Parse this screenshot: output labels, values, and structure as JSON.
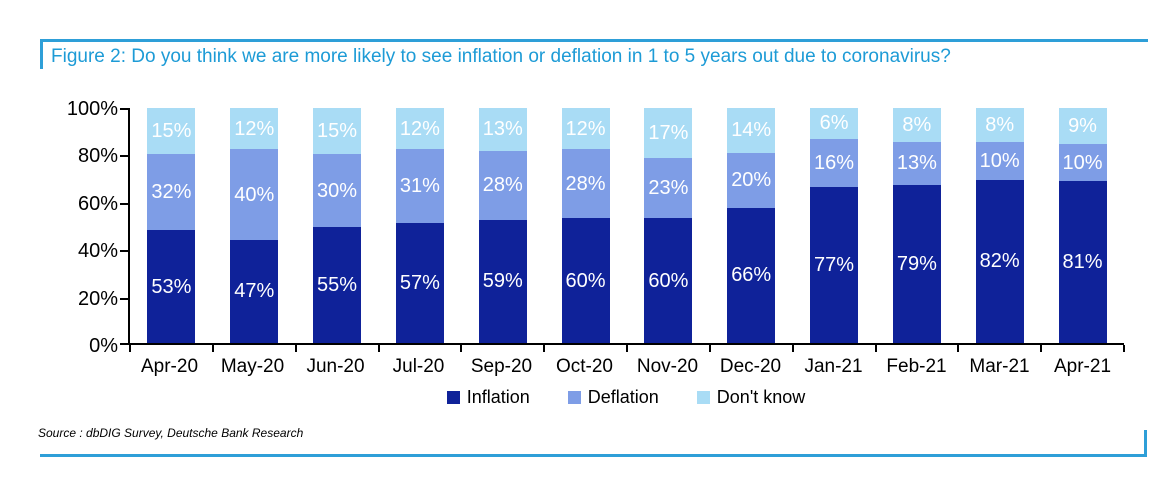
{
  "figure": {
    "title": "Figure 2: Do you think we are more likely to see inflation or deflation in 1 to 5 years out due to coronavirus?",
    "title_color": "#1d9bd6",
    "accent_rule_color": "#2e9fd8",
    "source": "Source : dbDIG Survey, Deutsche Bank Research"
  },
  "chart_data": {
    "type": "bar",
    "stacked": true,
    "title": "Figure 2: Do you think we are more likely to see inflation or deflation in 1 to 5 years out due to coronavirus?",
    "categories": [
      "Apr-20",
      "May-20",
      "Jun-20",
      "Jul-20",
      "Sep-20",
      "Oct-20",
      "Nov-20",
      "Dec-20",
      "Jan-21",
      "Feb-21",
      "Mar-21",
      "Apr-21"
    ],
    "series": [
      {
        "name": "Inflation",
        "color": "#0f2299",
        "values": [
          53,
          47,
          55,
          57,
          59,
          60,
          60,
          66,
          77,
          79,
          82,
          81
        ]
      },
      {
        "name": "Deflation",
        "color": "#7e9de6",
        "values": [
          32,
          40,
          30,
          31,
          28,
          28,
          23,
          20,
          16,
          13,
          10,
          10
        ]
      },
      {
        "name": "Don't know",
        "color": "#a9dcf5",
        "values": [
          15,
          12,
          15,
          12,
          13,
          12,
          17,
          14,
          6,
          8,
          8,
          9
        ]
      }
    ],
    "data_label_suffix": "%",
    "xlabel": "",
    "ylabel": "",
    "ylim": [
      0,
      100
    ],
    "yticks": [
      0,
      20,
      40,
      60,
      80,
      100
    ],
    "ytick_labels": [
      "0%",
      "20%",
      "40%",
      "60%",
      "80%",
      "100%"
    ],
    "grid": false,
    "legend_position": "bottom"
  }
}
